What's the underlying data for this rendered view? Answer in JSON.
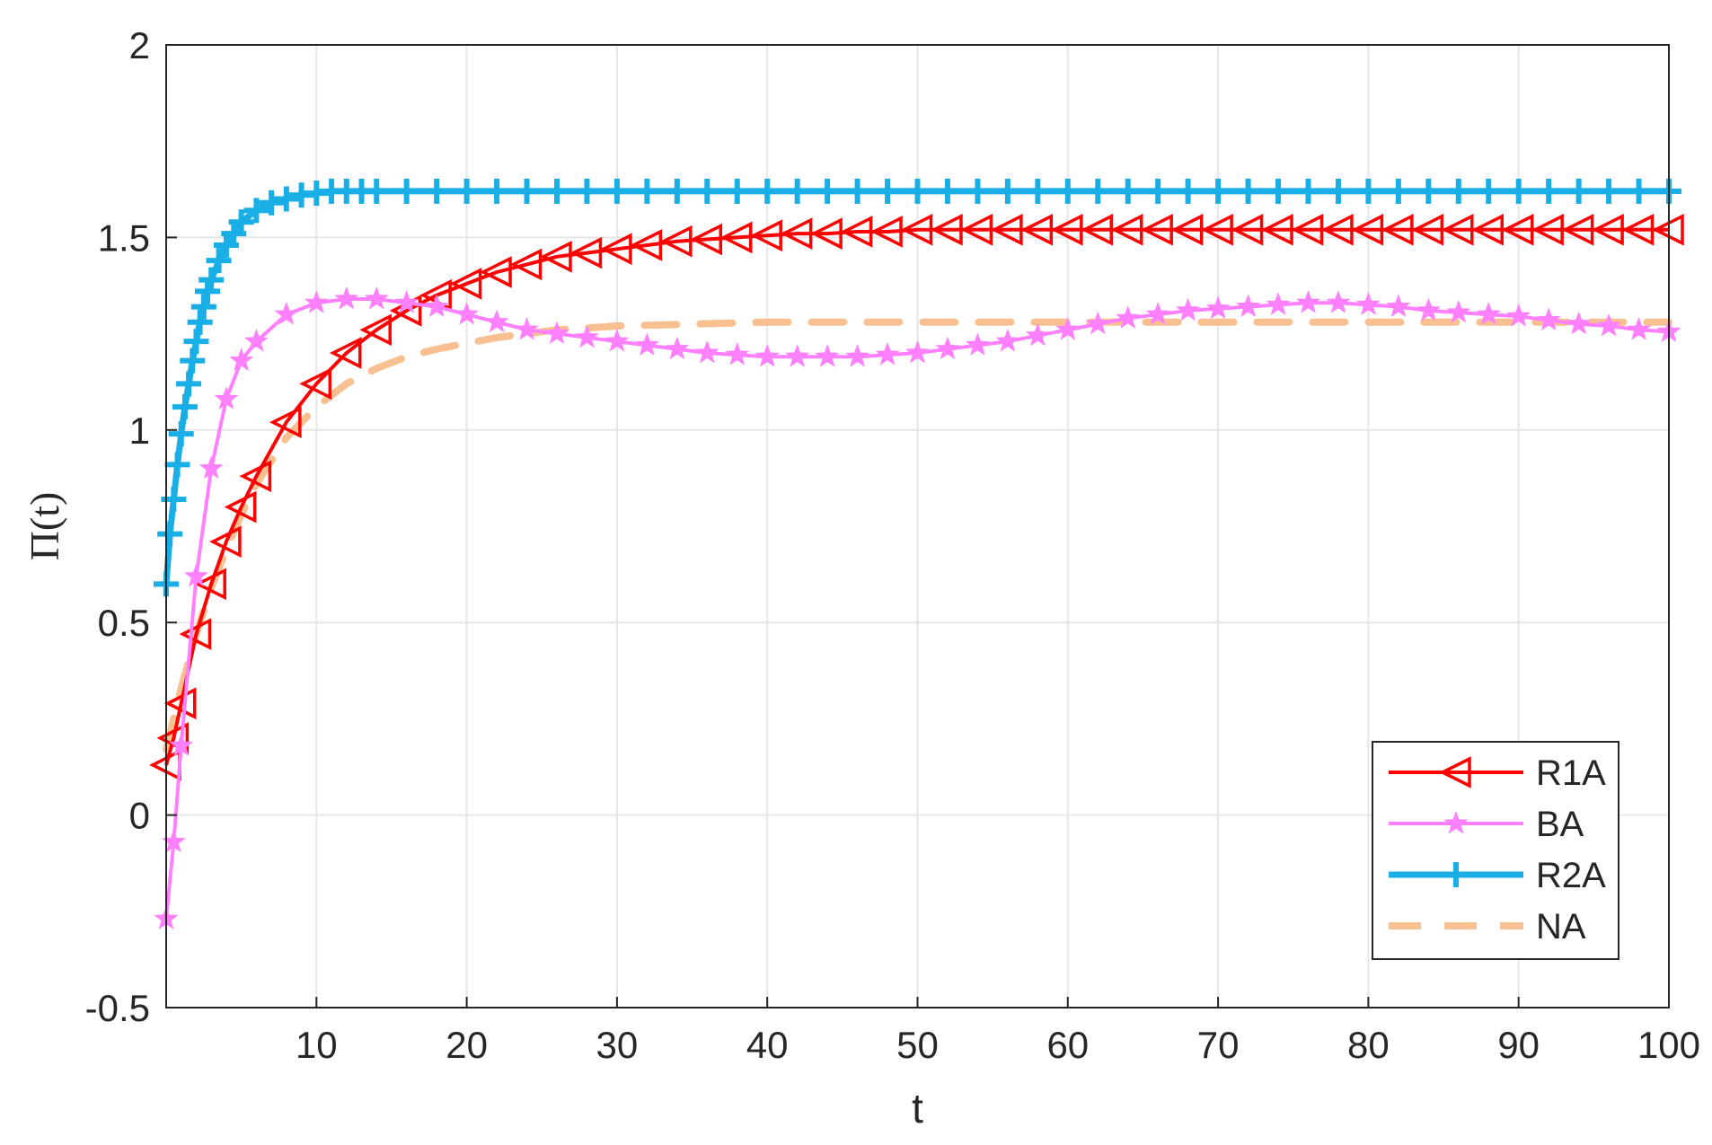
{
  "chart_data": {
    "type": "line",
    "title": "",
    "xlabel": "t",
    "ylabel": "Π(t)",
    "xlim": [
      0,
      100
    ],
    "ylim": [
      -0.5,
      2
    ],
    "x_ticks": [
      "10",
      "20",
      "30",
      "40",
      "50",
      "60",
      "70",
      "80",
      "90",
      "100"
    ],
    "y_ticks": [
      "-0.5",
      "0",
      "0.5",
      "1",
      "1.5",
      "2"
    ],
    "grid": true,
    "legend_position": "bottom-right",
    "series": [
      {
        "name": "R1A",
        "color": "#ff0000",
        "marker": "triangle-left",
        "style": "solid",
        "x": [
          0,
          0.5,
          1,
          2,
          3,
          4,
          5,
          6,
          8,
          10,
          12,
          14,
          16,
          18,
          20,
          22,
          24,
          26,
          28,
          30,
          32,
          34,
          36,
          38,
          40,
          42,
          44,
          46,
          48,
          50,
          52,
          54,
          56,
          58,
          60,
          62,
          64,
          66,
          68,
          70,
          72,
          74,
          76,
          78,
          80,
          82,
          84,
          86,
          88,
          90,
          92,
          94,
          96,
          98,
          100
        ],
        "y": [
          0.13,
          0.2,
          0.29,
          0.47,
          0.6,
          0.71,
          0.8,
          0.88,
          1.02,
          1.12,
          1.2,
          1.26,
          1.31,
          1.35,
          1.38,
          1.41,
          1.43,
          1.45,
          1.46,
          1.47,
          1.48,
          1.49,
          1.495,
          1.5,
          1.505,
          1.51,
          1.51,
          1.515,
          1.515,
          1.52,
          1.52,
          1.52,
          1.52,
          1.52,
          1.52,
          1.52,
          1.52,
          1.52,
          1.52,
          1.52,
          1.52,
          1.52,
          1.52,
          1.52,
          1.52,
          1.52,
          1.52,
          1.52,
          1.52,
          1.52,
          1.52,
          1.52,
          1.52,
          1.52,
          1.52
        ]
      },
      {
        "name": "BA",
        "color": "#ff80ff",
        "marker": "star",
        "style": "solid",
        "x": [
          0,
          0.5,
          1,
          2,
          3,
          4,
          5,
          6,
          8,
          10,
          12,
          14,
          16,
          18,
          20,
          22,
          24,
          26,
          28,
          30,
          32,
          34,
          36,
          38,
          40,
          42,
          44,
          46,
          48,
          50,
          52,
          54,
          56,
          58,
          60,
          62,
          64,
          66,
          68,
          70,
          72,
          74,
          76,
          78,
          80,
          82,
          84,
          86,
          88,
          90,
          92,
          94,
          96,
          98,
          100
        ],
        "y": [
          -0.27,
          -0.07,
          0.18,
          0.62,
          0.9,
          1.08,
          1.18,
          1.23,
          1.3,
          1.33,
          1.34,
          1.34,
          1.33,
          1.32,
          1.3,
          1.28,
          1.26,
          1.25,
          1.24,
          1.23,
          1.22,
          1.21,
          1.2,
          1.195,
          1.19,
          1.19,
          1.19,
          1.19,
          1.195,
          1.2,
          1.21,
          1.22,
          1.23,
          1.245,
          1.26,
          1.275,
          1.29,
          1.3,
          1.31,
          1.315,
          1.32,
          1.325,
          1.33,
          1.33,
          1.325,
          1.32,
          1.31,
          1.305,
          1.3,
          1.295,
          1.285,
          1.275,
          1.27,
          1.26,
          1.255
        ]
      },
      {
        "name": "R2A",
        "color": "#1aaee6",
        "marker": "plus",
        "style": "solid",
        "x": [
          0,
          0.25,
          0.5,
          0.75,
          1,
          1.25,
          1.5,
          1.75,
          2,
          2.25,
          2.5,
          2.75,
          3,
          3.5,
          4,
          4.5,
          5,
          6,
          7,
          8,
          9,
          10,
          11,
          12,
          13,
          14,
          16,
          18,
          20,
          22,
          24,
          26,
          28,
          30,
          32,
          34,
          36,
          38,
          40,
          42,
          44,
          46,
          48,
          50,
          52,
          54,
          56,
          58,
          60,
          62,
          64,
          66,
          68,
          70,
          72,
          74,
          76,
          78,
          80,
          82,
          84,
          86,
          88,
          90,
          92,
          94,
          96,
          98,
          100
        ],
        "y": [
          0.6,
          0.73,
          0.82,
          0.91,
          0.99,
          1.06,
          1.12,
          1.18,
          1.23,
          1.28,
          1.32,
          1.36,
          1.39,
          1.44,
          1.48,
          1.51,
          1.54,
          1.57,
          1.59,
          1.6,
          1.61,
          1.615,
          1.62,
          1.62,
          1.62,
          1.62,
          1.62,
          1.62,
          1.62,
          1.62,
          1.62,
          1.62,
          1.62,
          1.62,
          1.62,
          1.62,
          1.62,
          1.62,
          1.62,
          1.62,
          1.62,
          1.62,
          1.62,
          1.62,
          1.62,
          1.62,
          1.62,
          1.62,
          1.62,
          1.62,
          1.62,
          1.62,
          1.62,
          1.62,
          1.62,
          1.62,
          1.62,
          1.62,
          1.62,
          1.62,
          1.62,
          1.62,
          1.62,
          1.62,
          1.62,
          1.62,
          1.62,
          1.62,
          1.62
        ]
      },
      {
        "name": "NA",
        "color": "#f8c090",
        "marker": "none",
        "style": "dashed",
        "x": [
          0,
          1,
          2,
          3,
          4,
          5,
          6,
          7,
          8,
          9,
          10,
          12,
          14,
          16,
          18,
          20,
          22,
          24,
          26,
          28,
          30,
          35,
          40,
          45,
          50,
          55,
          60,
          65,
          70,
          75,
          80,
          85,
          90,
          95,
          100
        ],
        "y": [
          0.17,
          0.33,
          0.47,
          0.59,
          0.69,
          0.78,
          0.86,
          0.92,
          0.98,
          1.02,
          1.06,
          1.12,
          1.16,
          1.19,
          1.21,
          1.225,
          1.24,
          1.25,
          1.26,
          1.265,
          1.27,
          1.275,
          1.28,
          1.28,
          1.28,
          1.28,
          1.28,
          1.28,
          1.28,
          1.28,
          1.28,
          1.28,
          1.28,
          1.28,
          1.28
        ]
      }
    ]
  }
}
